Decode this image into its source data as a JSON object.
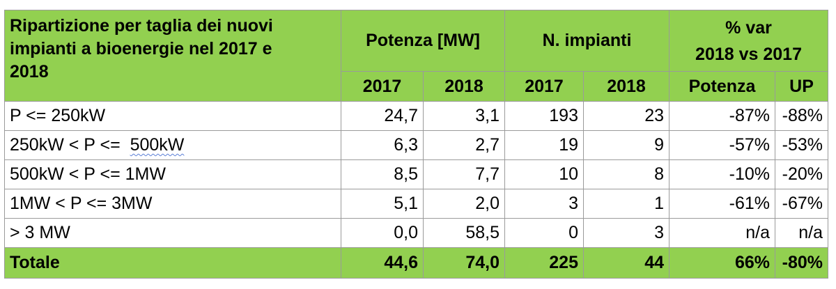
{
  "title_lines": [
    "Ripartizione per taglia dei nuovi",
    "impianti a bioenergie nel 2017 e",
    "2018"
  ],
  "headers": {
    "potenza": "Potenza [MW]",
    "impianti": "N. impianti",
    "var_line1": "% var",
    "var_line2": "2018 vs 2017",
    "years": [
      "2017",
      "2018",
      "2017",
      "2018"
    ],
    "var_potenza": "Potenza",
    "var_up": "UP"
  },
  "rows": [
    {
      "label": "P <= 250kW",
      "p2017": "24,7",
      "p2018": "3,1",
      "n2017": "193",
      "n2018": "23",
      "var_p": "-87%",
      "var_up": "-88%"
    },
    {
      "label_a": "250kW < P <=",
      "label_b": "500kW",
      "p2017": "6,3",
      "p2018": "2,7",
      "n2017": "19",
      "n2018": "9",
      "var_p": "-57%",
      "var_up": "-53%"
    },
    {
      "label": "500kW < P <= 1MW",
      "p2017": "8,5",
      "p2018": "7,7",
      "n2017": "10",
      "n2018": "8",
      "var_p": "-10%",
      "var_up": "-20%"
    },
    {
      "label": "1MW < P <= 3MW",
      "p2017": "5,1",
      "p2018": "2,0",
      "n2017": "3",
      "n2018": "1",
      "var_p": "-61%",
      "var_up": "-67%"
    },
    {
      "label": "> 3 MW",
      "p2017": "0,0",
      "p2018": "58,5",
      "n2017": "0",
      "n2018": "3",
      "var_p": "n/a",
      "var_up": "n/a"
    }
  ],
  "total": {
    "label": "Totale",
    "p2017": "44,6",
    "p2018": "74,0",
    "n2017": "225",
    "n2018": "44",
    "var_p": "66%",
    "var_up": "-80%"
  },
  "colors": {
    "header_bg": "#92d050",
    "border": "#9a9a9a"
  }
}
